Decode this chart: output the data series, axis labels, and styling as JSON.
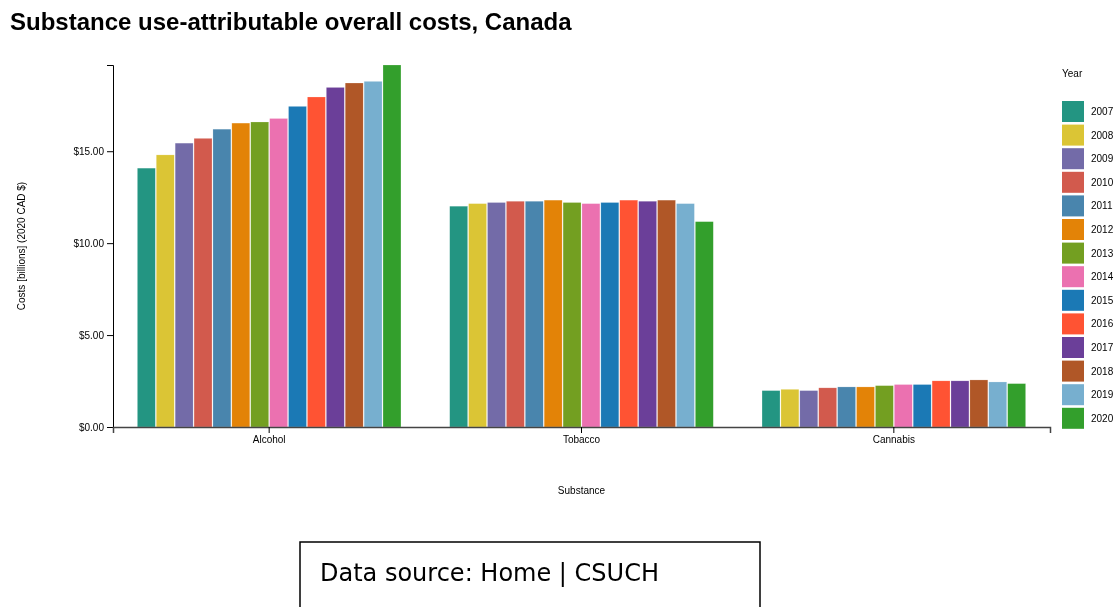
{
  "chart_data": {
    "type": "bar",
    "title": "Substance use-attributable overall costs, Canada",
    "xlabel": "Substance",
    "ylabel": "Costs [billions] (2020 CAD $)",
    "legend_title": "Year",
    "legend": "right",
    "categories": [
      "Alcohol",
      "Tobacco",
      "Cannabis"
    ],
    "series": [
      {
        "name": "2007",
        "color": "#239582",
        "values": [
          14.08,
          12.01,
          1.98
        ]
      },
      {
        "name": "2008",
        "color": "#dbc535",
        "values": [
          14.8,
          12.15,
          2.05
        ]
      },
      {
        "name": "2009",
        "color": "#736ba8",
        "values": [
          15.44,
          12.21,
          1.98
        ]
      },
      {
        "name": "2010",
        "color": "#d25a4d",
        "values": [
          15.7,
          12.28,
          2.13
        ]
      },
      {
        "name": "2011",
        "color": "#4985ad",
        "values": [
          16.2,
          12.28,
          2.18
        ]
      },
      {
        "name": "2012",
        "color": "#e38307",
        "values": [
          16.53,
          12.34,
          2.18
        ]
      },
      {
        "name": "2013",
        "color": "#739f21",
        "values": [
          16.59,
          12.21,
          2.25
        ]
      },
      {
        "name": "2014",
        "color": "#eb71b0",
        "values": [
          16.78,
          12.15,
          2.31
        ]
      },
      {
        "name": "2015",
        "color": "#1b79b5",
        "values": [
          17.44,
          12.21,
          2.31
        ]
      },
      {
        "name": "2016",
        "color": "#ff5333",
        "values": [
          17.95,
          12.34,
          2.51
        ]
      },
      {
        "name": "2017",
        "color": "#6b3f99",
        "values": [
          18.47,
          12.28,
          2.51
        ]
      },
      {
        "name": "2018",
        "color": "#b05727",
        "values": [
          18.71,
          12.34,
          2.56
        ]
      },
      {
        "name": "2019",
        "color": "#77afcf",
        "values": [
          18.8,
          12.15,
          2.45
        ]
      },
      {
        "name": "2020",
        "color": "#339f2c",
        "values": [
          19.69,
          11.17,
          2.36
        ]
      }
    ],
    "ylim": [
      0,
      19.69
    ],
    "yticks": [
      {
        "value": 0,
        "label": "$0.00"
      },
      {
        "value": 5,
        "label": "$5.00"
      },
      {
        "value": 10,
        "label": "$10.00"
      },
      {
        "value": 15,
        "label": "$15.00"
      }
    ],
    "annotations": [
      "Data source: Home | CSUCH"
    ]
  }
}
